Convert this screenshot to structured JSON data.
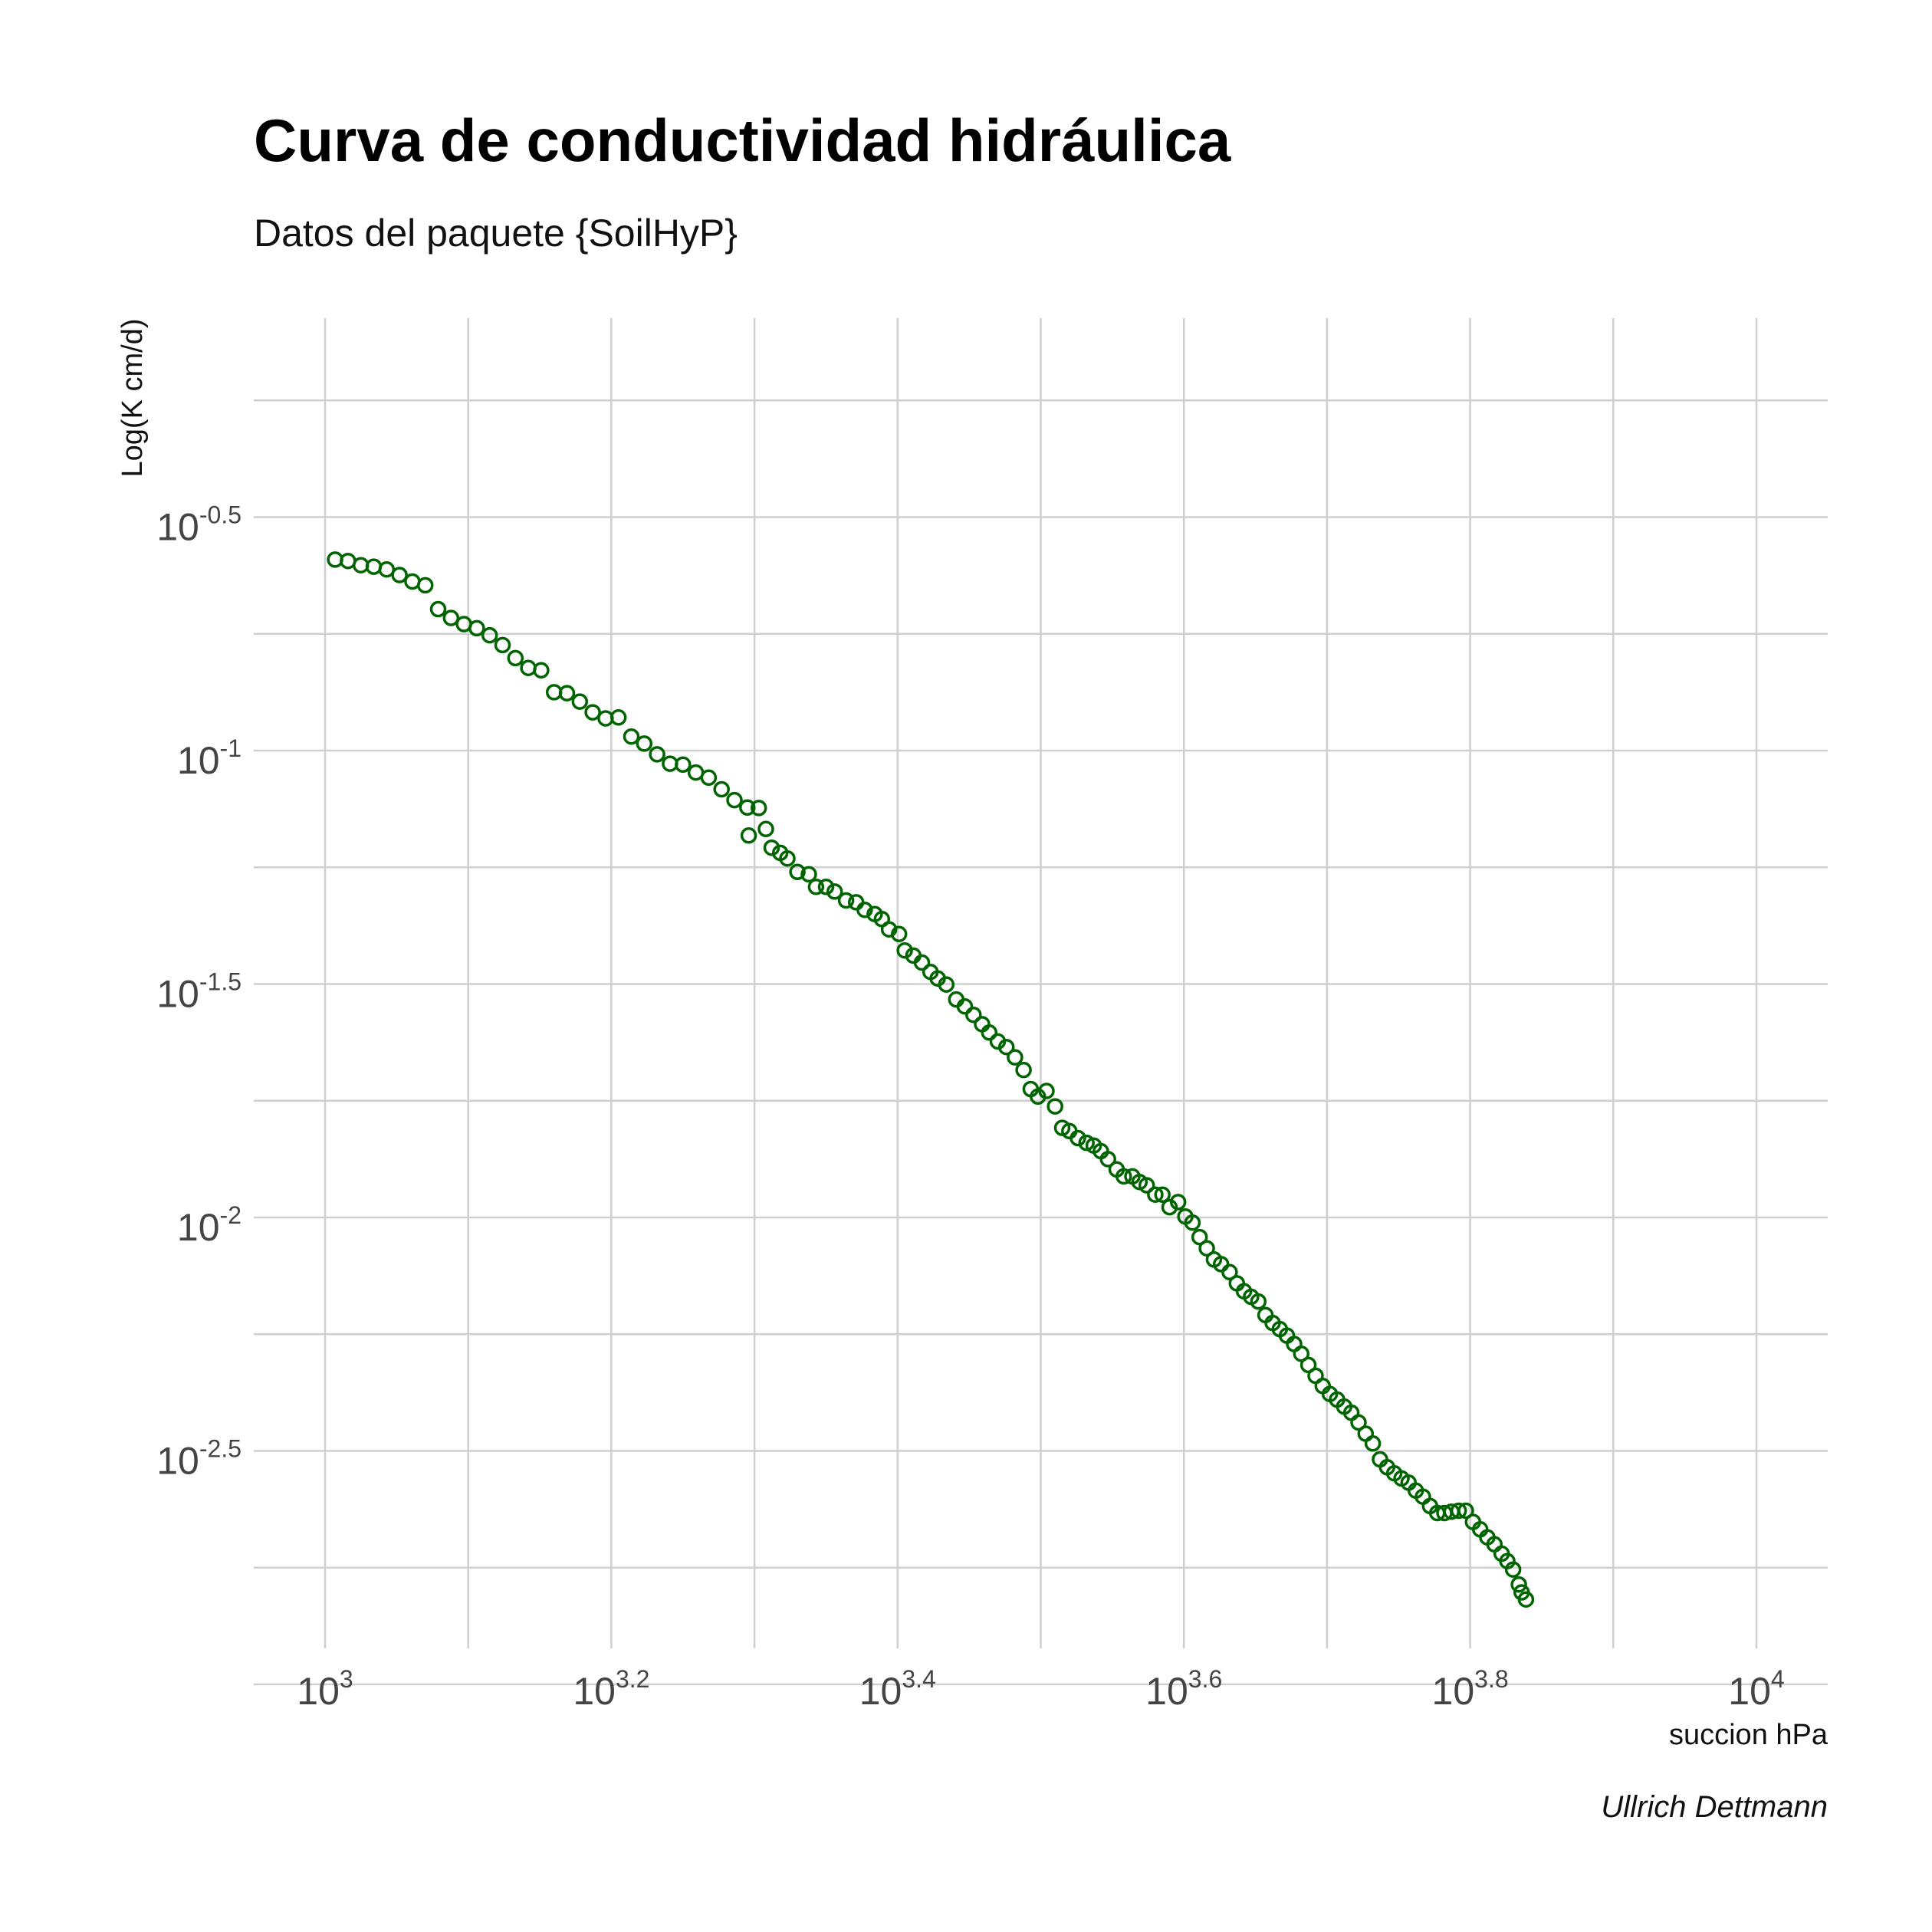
{
  "chart_data": {
    "type": "scatter",
    "title": "Curva de conductividad hidráulica",
    "subtitle": "Datos del paquete {SoilHyP}",
    "caption": "Ullrich Dettmann",
    "xlabel": "succion hPa",
    "ylabel": "Log(K cm/d)",
    "x_scale": "log10",
    "y_scale": "log10",
    "xlim_log10": [
      2.97,
      4.05
    ],
    "ylim_log10": [
      -3.15,
      -0.25
    ],
    "x_ticks": [
      {
        "base": "10",
        "exp": "3",
        "log": 3.0
      },
      {
        "base": "10",
        "exp": "3.2",
        "log": 3.2
      },
      {
        "base": "10",
        "exp": "3.4",
        "log": 3.4
      },
      {
        "base": "10",
        "exp": "3.6",
        "log": 3.6
      },
      {
        "base": "10",
        "exp": "3.8",
        "log": 3.8
      },
      {
        "base": "10",
        "exp": "4",
        "log": 4.0
      }
    ],
    "y_ticks": [
      {
        "base": "10",
        "exp": "-0.5",
        "log": -0.5
      },
      {
        "base": "10",
        "exp": "-1",
        "log": -1.0
      },
      {
        "base": "10",
        "exp": "-1.5",
        "log": -1.5
      },
      {
        "base": "10",
        "exp": "-2",
        "log": -2.0
      },
      {
        "base": "10",
        "exp": "-2.5",
        "log": -2.5
      }
    ],
    "grid": true,
    "point_color": "#006400",
    "points_log10": [
      [
        3.007,
        -0.591
      ],
      [
        3.016,
        -0.594
      ],
      [
        3.025,
        -0.603
      ],
      [
        3.034,
        -0.606
      ],
      [
        3.043,
        -0.612
      ],
      [
        3.052,
        -0.624
      ],
      [
        3.061,
        -0.638
      ],
      [
        3.07,
        -0.646
      ],
      [
        3.079,
        -0.697
      ],
      [
        3.088,
        -0.716
      ],
      [
        3.097,
        -0.729
      ],
      [
        3.106,
        -0.738
      ],
      [
        3.115,
        -0.753
      ],
      [
        3.124,
        -0.774
      ],
      [
        3.133,
        -0.802
      ],
      [
        3.142,
        -0.823
      ],
      [
        3.151,
        -0.828
      ],
      [
        3.16,
        -0.875
      ],
      [
        3.169,
        -0.877
      ],
      [
        3.178,
        -0.895
      ],
      [
        3.187,
        -0.918
      ],
      [
        3.196,
        -0.931
      ],
      [
        3.205,
        -0.929
      ],
      [
        3.214,
        -0.97
      ],
      [
        3.223,
        -0.985
      ],
      [
        3.232,
        -1.008
      ],
      [
        3.241,
        -1.028
      ],
      [
        3.25,
        -1.03
      ],
      [
        3.259,
        -1.047
      ],
      [
        3.268,
        -1.058
      ],
      [
        3.277,
        -1.083
      ],
      [
        3.286,
        -1.106
      ],
      [
        3.295,
        -1.122
      ],
      [
        3.303,
        -1.123
      ],
      [
        3.296,
        -1.182
      ],
      [
        3.308,
        -1.168
      ],
      [
        3.312,
        -1.208
      ],
      [
        3.318,
        -1.219
      ],
      [
        3.323,
        -1.231
      ],
      [
        3.33,
        -1.26
      ],
      [
        3.338,
        -1.265
      ],
      [
        3.343,
        -1.292
      ],
      [
        3.35,
        -1.292
      ],
      [
        3.356,
        -1.302
      ],
      [
        3.364,
        -1.321
      ],
      [
        3.371,
        -1.325
      ],
      [
        3.377,
        -1.341
      ],
      [
        3.384,
        -1.35
      ],
      [
        3.389,
        -1.361
      ],
      [
        3.394,
        -1.383
      ],
      [
        3.401,
        -1.393
      ],
      [
        3.405,
        -1.428
      ],
      [
        3.411,
        -1.439
      ],
      [
        3.417,
        -1.454
      ],
      [
        3.423,
        -1.474
      ],
      [
        3.428,
        -1.488
      ],
      [
        3.434,
        -1.501
      ],
      [
        3.441,
        -1.533
      ],
      [
        3.447,
        -1.548
      ],
      [
        3.453,
        -1.566
      ],
      [
        3.459,
        -1.586
      ],
      [
        3.464,
        -1.604
      ],
      [
        3.47,
        -1.623
      ],
      [
        3.476,
        -1.635
      ],
      [
        3.482,
        -1.657
      ],
      [
        3.488,
        -1.684
      ],
      [
        3.493,
        -1.725
      ],
      [
        3.498,
        -1.741
      ],
      [
        3.504,
        -1.729
      ],
      [
        3.51,
        -1.762
      ],
      [
        3.515,
        -1.808
      ],
      [
        3.52,
        -1.815
      ],
      [
        3.526,
        -1.83
      ],
      [
        3.532,
        -1.84
      ],
      [
        3.537,
        -1.846
      ],
      [
        3.542,
        -1.858
      ],
      [
        3.547,
        -1.875
      ],
      [
        3.553,
        -1.897
      ],
      [
        3.558,
        -1.912
      ],
      [
        3.564,
        -1.912
      ],
      [
        3.569,
        -1.924
      ],
      [
        3.574,
        -1.931
      ],
      [
        3.58,
        -1.951
      ],
      [
        3.585,
        -1.951
      ],
      [
        3.59,
        -1.978
      ],
      [
        3.596,
        -1.967
      ],
      [
        3.601,
        -1.998
      ],
      [
        3.606,
        -2.011
      ],
      [
        3.611,
        -2.042
      ],
      [
        3.616,
        -2.066
      ],
      [
        3.621,
        -2.09
      ],
      [
        3.626,
        -2.1
      ],
      [
        3.632,
        -2.117
      ],
      [
        3.637,
        -2.141
      ],
      [
        3.642,
        -2.158
      ],
      [
        3.647,
        -2.17
      ],
      [
        3.652,
        -2.18
      ],
      [
        3.657,
        -2.209
      ],
      [
        3.662,
        -2.226
      ],
      [
        3.667,
        -2.239
      ],
      [
        3.672,
        -2.253
      ],
      [
        3.677,
        -2.271
      ],
      [
        3.682,
        -2.292
      ],
      [
        3.687,
        -2.316
      ],
      [
        3.692,
        -2.339
      ],
      [
        3.697,
        -2.361
      ],
      [
        3.702,
        -2.378
      ],
      [
        3.707,
        -2.39
      ],
      [
        3.712,
        -2.405
      ],
      [
        3.717,
        -2.418
      ],
      [
        3.722,
        -2.439
      ],
      [
        3.727,
        -2.463
      ],
      [
        3.732,
        -2.484
      ],
      [
        3.737,
        -2.518
      ],
      [
        3.742,
        -2.535
      ],
      [
        3.747,
        -2.548
      ],
      [
        3.752,
        -2.559
      ],
      [
        3.757,
        -2.568
      ],
      [
        3.762,
        -2.585
      ],
      [
        3.767,
        -2.598
      ],
      [
        3.772,
        -2.618
      ],
      [
        3.777,
        -2.633
      ],
      [
        3.782,
        -2.633
      ],
      [
        3.787,
        -2.63
      ],
      [
        3.792,
        -2.628
      ],
      [
        3.797,
        -2.628
      ],
      [
        3.802,
        -2.652
      ],
      [
        3.807,
        -2.668
      ],
      [
        3.812,
        -2.685
      ],
      [
        3.817,
        -2.7
      ],
      [
        3.822,
        -2.72
      ],
      [
        3.826,
        -2.736
      ],
      [
        3.83,
        -2.754
      ],
      [
        3.834,
        -2.786
      ],
      [
        3.836,
        -2.803
      ],
      [
        3.839,
        -2.818
      ]
    ]
  }
}
